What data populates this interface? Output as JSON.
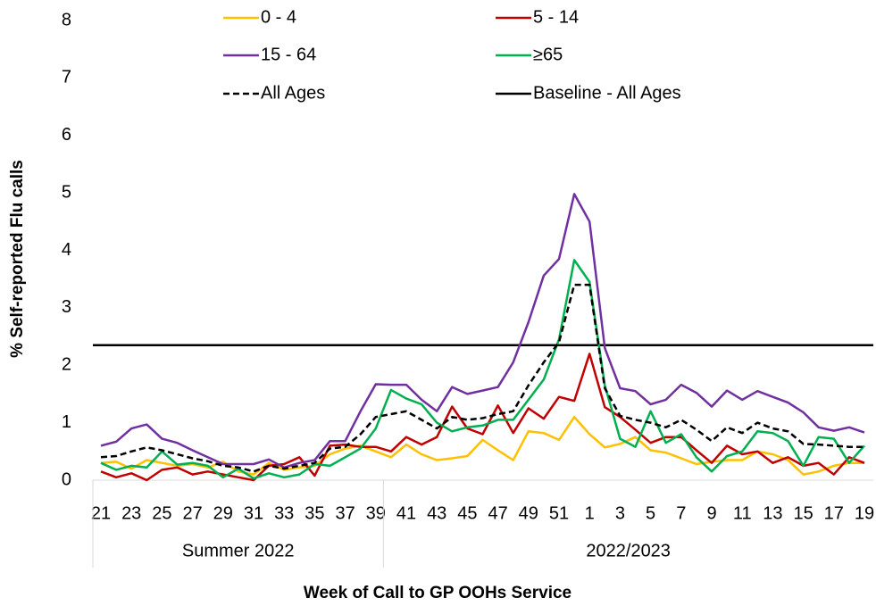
{
  "chart_data": {
    "type": "line",
    "y_label": "% Self-reported Flu calls",
    "x_label": "Week of Call to GP OOHs Service",
    "categories": [
      "21",
      null,
      "23",
      null,
      "25",
      null,
      "27",
      null,
      "29",
      null,
      "31",
      null,
      "33",
      null,
      "35",
      null,
      "37",
      null,
      "39",
      null,
      "41",
      null,
      "43",
      null,
      "45",
      null,
      "47",
      null,
      "49",
      null,
      "51",
      null,
      "1",
      null,
      "3",
      null,
      "5",
      null,
      "7",
      null,
      "9",
      null,
      "11",
      null,
      "13",
      null,
      "15",
      null,
      "17",
      null,
      "19"
    ],
    "groups": [
      {
        "label": "Summer 2022",
        "span": 19
      },
      {
        "label": "2022/2023",
        "span": 32
      }
    ],
    "ylim": [
      0,
      8
    ],
    "yticks": [
      0,
      1,
      2,
      3,
      4,
      5,
      6,
      7,
      8
    ],
    "series": [
      {
        "name": "0 - 4",
        "color": "#ffc000",
        "values": [
          0.3,
          0.32,
          0.2,
          0.35,
          0.3,
          0.25,
          0.28,
          0.22,
          0.32,
          0.15,
          0.1,
          0.3,
          0.18,
          0.22,
          0.25,
          0.45,
          0.55,
          0.6,
          0.5,
          0.4,
          0.62,
          0.45,
          0.35,
          0.38,
          0.42,
          0.7,
          0.52,
          0.35,
          0.85,
          0.82,
          0.7,
          1.1,
          0.8,
          0.57,
          0.63,
          0.75,
          0.52,
          0.48,
          0.38,
          0.28,
          0.32,
          0.35,
          0.35,
          0.5,
          0.45,
          0.35,
          0.1,
          0.15,
          0.25,
          0.3,
          0.3
        ]
      },
      {
        "name": "5 - 14",
        "color": "#c00000",
        "values": [
          0.15,
          0.05,
          0.12,
          0.0,
          0.18,
          0.22,
          0.1,
          0.15,
          0.1,
          0.05,
          0.0,
          0.25,
          0.28,
          0.4,
          0.08,
          0.6,
          0.62,
          0.58,
          0.58,
          0.5,
          0.75,
          0.62,
          0.75,
          1.28,
          0.9,
          0.8,
          1.3,
          0.82,
          1.25,
          1.07,
          1.45,
          1.38,
          2.2,
          1.27,
          1.1,
          0.88,
          0.65,
          0.75,
          0.75,
          0.52,
          0.3,
          0.6,
          0.45,
          0.5,
          0.3,
          0.4,
          0.25,
          0.3,
          0.1,
          0.4,
          0.3
        ]
      },
      {
        "name": "15 - 64",
        "color": "#7030a0",
        "values": [
          0.6,
          0.67,
          0.9,
          0.97,
          0.72,
          0.65,
          0.52,
          0.4,
          0.28,
          0.28,
          0.28,
          0.36,
          0.22,
          0.3,
          0.35,
          0.68,
          0.68,
          1.2,
          1.67,
          1.66,
          1.66,
          1.4,
          1.2,
          1.62,
          1.5,
          1.56,
          1.62,
          2.05,
          2.75,
          3.56,
          3.85,
          4.98,
          4.5,
          2.3,
          1.6,
          1.55,
          1.32,
          1.4,
          1.66,
          1.52,
          1.28,
          1.56,
          1.4,
          1.55,
          1.45,
          1.35,
          1.18,
          0.92,
          0.86,
          0.92,
          0.83
        ]
      },
      {
        "name": "≥65",
        "color": "#00b050",
        "values": [
          0.3,
          0.18,
          0.25,
          0.22,
          0.5,
          0.27,
          0.3,
          0.25,
          0.05,
          0.2,
          0.03,
          0.12,
          0.05,
          0.1,
          0.28,
          0.25,
          0.4,
          0.55,
          0.9,
          1.57,
          1.42,
          1.32,
          1.0,
          0.85,
          0.92,
          0.95,
          1.05,
          1.05,
          1.4,
          1.75,
          2.45,
          3.83,
          3.45,
          1.65,
          0.72,
          0.58,
          1.2,
          0.65,
          0.8,
          0.4,
          0.15,
          0.42,
          0.5,
          0.85,
          0.82,
          0.68,
          0.25,
          0.75,
          0.72,
          0.3,
          0.6
        ]
      },
      {
        "name": "All Ages",
        "color": "#000000",
        "dashed": true,
        "values": [
          0.4,
          0.42,
          0.5,
          0.57,
          0.52,
          0.45,
          0.38,
          0.33,
          0.25,
          0.22,
          0.15,
          0.25,
          0.2,
          0.25,
          0.3,
          0.55,
          0.58,
          0.8,
          1.1,
          1.15,
          1.2,
          1.05,
          0.9,
          1.1,
          1.05,
          1.08,
          1.15,
          1.2,
          1.65,
          2.05,
          2.4,
          3.4,
          3.4,
          1.6,
          1.12,
          1.05,
          1.0,
          0.92,
          1.05,
          0.88,
          0.68,
          0.92,
          0.82,
          1.0,
          0.9,
          0.85,
          0.63,
          0.62,
          0.6,
          0.58,
          0.58
        ]
      }
    ],
    "baseline": {
      "name": "Baseline - All Ages",
      "color": "#000000",
      "value": 2.35
    }
  }
}
